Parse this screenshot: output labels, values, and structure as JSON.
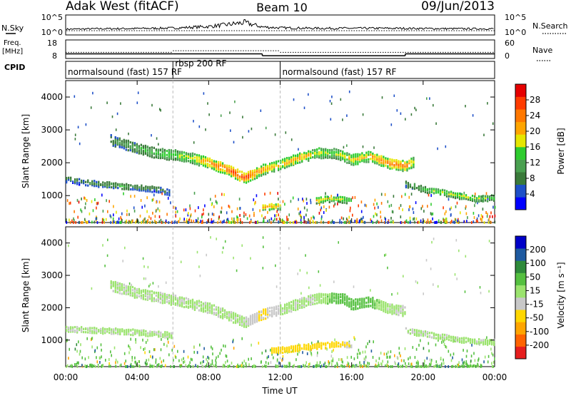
{
  "header": {
    "title_left": "Adak West (fitACF)",
    "title_center": "Beam 10",
    "title_right": "09/Jun/2013"
  },
  "nsky_panel": {
    "label_left": "N.Sky",
    "label_right": "N.Search",
    "y_ticks_left": [
      "10^5",
      "10^0"
    ],
    "y_ticks_right": [
      "10^5",
      "10^0"
    ]
  },
  "freq_panel": {
    "label_left_1": "Freq.",
    "label_left_2": "[MHz]",
    "label_right": "Nave",
    "y_ticks_left": [
      "18",
      "8"
    ],
    "y_ticks_right": [
      "60",
      "0"
    ]
  },
  "cpid": {
    "label": "CPID",
    "segments": [
      {
        "start_hour": 0,
        "label": "normalsound (fast) 157 RF"
      },
      {
        "start_hour": 6,
        "label": "rbsp 200 RF"
      },
      {
        "start_hour": 12,
        "label": "normalsound (fast) 157 RF"
      }
    ]
  },
  "power_panel": {
    "ylabel": "Slant Range [km]",
    "yticks": [
      "4000",
      "3000",
      "2000",
      "1000"
    ],
    "colorbar_label": "Power [dB]",
    "colorbar_ticks": [
      "28",
      "24",
      "20",
      "16",
      "12",
      "8",
      "4"
    ],
    "colorbar_colors": [
      "#0000ff",
      "#1e50c8",
      "#3a7a3a",
      "#4aa050",
      "#2ecc2e",
      "#e6e600",
      "#ffa500",
      "#ff7800",
      "#ff3c00",
      "#e60000"
    ]
  },
  "velocity_panel": {
    "ylabel": "Slant Range [km]",
    "yticks": [
      "4000",
      "3000",
      "2000",
      "1000"
    ],
    "colorbar_label": "Velocity [m s⁻¹]",
    "colorbar_ticks": [
      "200",
      "100",
      "50",
      "15",
      "-15",
      "-50",
      "-100",
      "-200"
    ],
    "colorbar_colors": [
      "#0000c8",
      "#1e5aa0",
      "#2e8a3a",
      "#55c040",
      "#9be36e",
      "#c8c8c8",
      "#ffd700",
      "#ffa500",
      "#ff6400",
      "#e61e1e"
    ]
  },
  "xaxis": {
    "label": "Time UT",
    "ticks": [
      "00:00",
      "04:00",
      "08:00",
      "12:00",
      "16:00",
      "20:00",
      "00:00"
    ]
  },
  "chart_data": {
    "type": "heatmap",
    "title": "Adak West (fitACF) Beam 10 09/Jun/2013",
    "xlabel": "Time UT",
    "ylabel": "Slant Range [km]",
    "xlim_hours": [
      0,
      24
    ],
    "ylim_km": [
      180,
      4500
    ],
    "frequency_mhz": [
      {
        "start": 0,
        "end": 6,
        "value": 10.5
      },
      {
        "start": 6,
        "end": 11,
        "value": 10.5
      },
      {
        "start": 11,
        "end": 12,
        "value": 9.5
      },
      {
        "start": 12,
        "end": 19,
        "value": 9.5
      },
      {
        "start": 19,
        "end": 24,
        "value": 10.5
      }
    ],
    "nave": [
      {
        "start": 0,
        "end": 6,
        "value": 20
      },
      {
        "start": 6,
        "end": 12,
        "value": 25
      },
      {
        "start": 12,
        "end": 24,
        "value": 20
      }
    ],
    "nsky_profile": {
      "x": [
        0,
        2,
        4,
        6,
        8,
        9,
        10,
        11,
        12,
        14,
        16,
        18,
        20,
        22,
        24
      ],
      "y": [
        1,
        1.2,
        1.3,
        1.5,
        2.2,
        3,
        4,
        2,
        1.6,
        1.4,
        1.4,
        1.4,
        1.3,
        1.2,
        1.2
      ]
    },
    "power_features": [
      {
        "name": "main_band",
        "x": [
          2.5,
          4,
          5,
          6,
          7,
          8,
          9,
          10,
          10.5,
          11,
          12,
          13,
          14,
          15,
          16,
          17,
          18,
          19,
          19.5
        ],
        "y": [
          2700,
          2450,
          2300,
          2250,
          2150,
          2000,
          1800,
          1550,
          1650,
          1800,
          1950,
          2150,
          2300,
          2300,
          2100,
          2200,
          2000,
          1900,
          2050
        ],
        "power_db": [
          10,
          12,
          14,
          16,
          18,
          24,
          26,
          28,
          24,
          22,
          20,
          22,
          18,
          16,
          20,
          22,
          24,
          26,
          16
        ]
      },
      {
        "name": "low_band_morning",
        "x": [
          0,
          1,
          2,
          3,
          4,
          5,
          5.8
        ],
        "y": [
          1500,
          1400,
          1350,
          1300,
          1250,
          1200,
          1100
        ],
        "power_db": [
          8,
          8,
          10,
          12,
          10,
          8,
          8
        ]
      },
      {
        "name": "low_band_evening",
        "x": [
          19,
          20,
          21,
          22,
          23,
          24
        ],
        "y": [
          1350,
          1200,
          1100,
          1000,
          900,
          950
        ],
        "power_db": [
          10,
          14,
          16,
          18,
          16,
          14
        ]
      },
      {
        "name": "ground_scatter_midday",
        "x": [
          11,
          11.5,
          12
        ],
        "y": [
          650,
          680,
          650
        ],
        "power_db": [
          22,
          22,
          20
        ]
      },
      {
        "name": "midday_echo",
        "x": [
          14,
          14.5,
          15,
          15.5,
          16
        ],
        "y": [
          850,
          900,
          900,
          880,
          850
        ],
        "power_db": [
          20,
          18,
          18,
          16,
          16
        ]
      }
    ],
    "velocity_features": [
      {
        "name": "main_band",
        "x": [
          2.5,
          4,
          6,
          8,
          10,
          11,
          12,
          14,
          15.5,
          16,
          17,
          18,
          19
        ],
        "y": [
          2700,
          2450,
          2250,
          2000,
          1550,
          1800,
          1950,
          2300,
          2300,
          2100,
          2200,
          2000,
          1900
        ],
        "velocity_ms": [
          -10,
          -10,
          -10,
          -10,
          -10,
          -60,
          -10,
          -10,
          40,
          40,
          30,
          -10,
          -10
        ]
      },
      {
        "name": "low_band_morning",
        "x": [
          0,
          2,
          4,
          6
        ],
        "y": [
          1350,
          1300,
          1250,
          1150
        ],
        "velocity_ms": [
          -10,
          -10,
          -10,
          -10
        ]
      },
      {
        "name": "low_band_evening",
        "x": [
          19,
          21,
          23,
          24
        ],
        "y": [
          1300,
          1100,
          950,
          950
        ],
        "velocity_ms": [
          -10,
          -10,
          -10,
          -10
        ]
      },
      {
        "name": "midday_negative",
        "x": [
          11.5,
          12,
          14,
          15,
          16
        ],
        "y": [
          700,
          700,
          820,
          880,
          850
        ],
        "velocity_ms": [
          -80,
          -60,
          -60,
          -60,
          -40
        ]
      }
    ],
    "gridlines_hours": [
      6,
      12
    ]
  }
}
